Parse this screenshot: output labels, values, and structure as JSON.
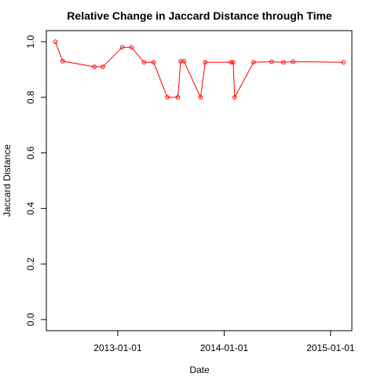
{
  "chart_data": {
    "type": "line",
    "title": "Relative Change in Jaccard Distance through Time",
    "xlabel": "Date",
    "ylabel": "Jaccard Distance",
    "x_ticks": [
      "2013-01-01",
      "2014-01-01",
      "2015-01-01"
    ],
    "y_ticks": [
      "0.0",
      "0.2",
      "0.4",
      "0.6",
      "0.8",
      "1.0"
    ],
    "ylim": [
      0.0,
      1.0
    ],
    "xlim": [
      "2012-05-01",
      "2015-03-15"
    ],
    "grid": false,
    "legend": false,
    "colors": {
      "series": "#ff0000",
      "axes": "#000000"
    },
    "series": [
      {
        "x": [
          "2012-06-01",
          "2012-06-26",
          "2012-10-13",
          "2012-11-11",
          "2013-01-16",
          "2013-02-17",
          "2013-04-01",
          "2013-05-04",
          "2013-06-20",
          "2013-07-26",
          "2013-08-05",
          "2013-08-16",
          "2013-10-12",
          "2013-10-28",
          "2014-01-25",
          "2014-02-01",
          "2014-02-06",
          "2014-04-12",
          "2014-06-13",
          "2014-07-24",
          "2014-08-25",
          "2015-02-15"
        ],
        "y": [
          1.0,
          0.93,
          0.91,
          0.91,
          0.98,
          0.98,
          0.926,
          0.926,
          0.8,
          0.8,
          0.93,
          0.93,
          0.8,
          0.926,
          0.926,
          0.926,
          0.8,
          0.926,
          0.928,
          0.926,
          0.928,
          0.926
        ]
      }
    ]
  }
}
